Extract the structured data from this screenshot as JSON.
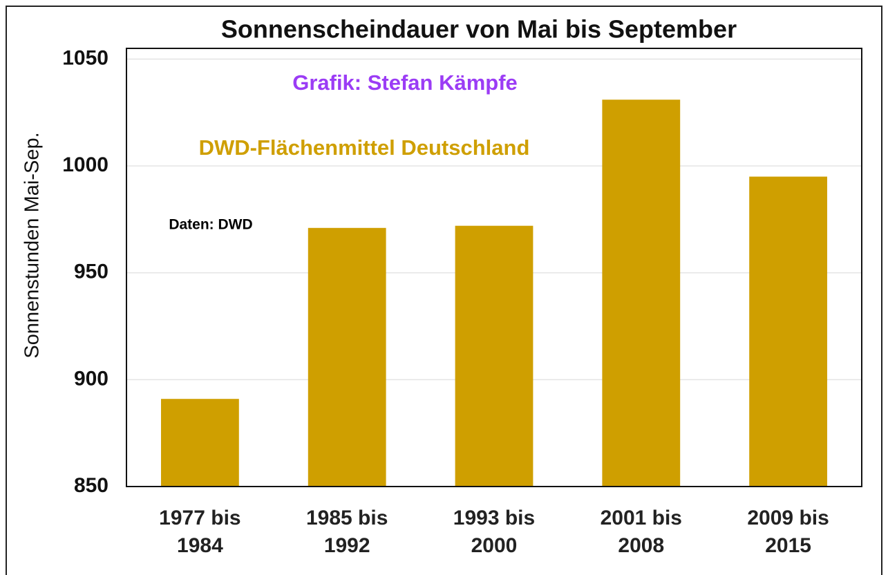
{
  "chart_data": {
    "type": "bar",
    "title": "Sonnenscheindauer von Mai bis September",
    "y_label": "Sonnenstunden  Mai-Sep.",
    "annotations": [
      "Grafik: Stefan Kämpfe",
      "DWD-Flächenmittel Deutschland",
      "Daten: DWD"
    ],
    "categories": [
      "1977 bis 1984",
      "1985 bis 1992",
      "1993 bis 2000",
      "2001 bis 2008",
      "2009 bis 2015"
    ],
    "values": [
      891,
      971,
      972,
      1031,
      995
    ],
    "color": "#cf9f00",
    "ylim": [
      850,
      1055
    ],
    "yticks": [
      850,
      900,
      950,
      1000,
      1050
    ],
    "grid": true
  }
}
